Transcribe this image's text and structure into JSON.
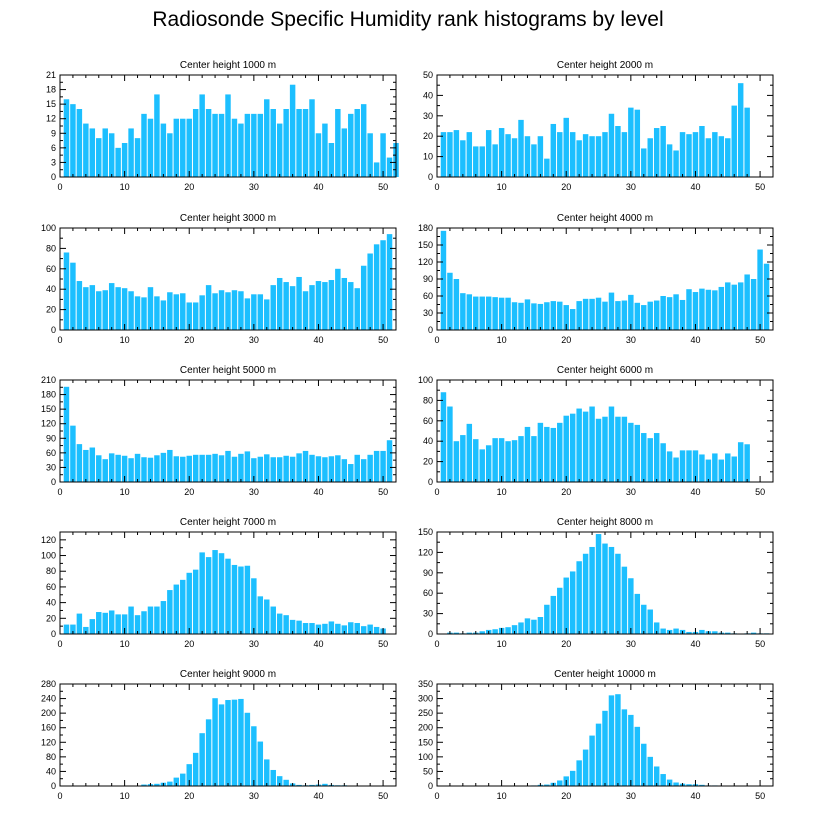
{
  "title": "Radiosonde Specific Humidity rank histograms by level",
  "bar_color": "#1cbfff",
  "chart_data": [
    {
      "type": "bar",
      "title": "Center height 1000 m",
      "xlim": [
        0,
        52
      ],
      "xticks": [
        0,
        10,
        20,
        30,
        40,
        50
      ],
      "ylim": [
        0,
        21
      ],
      "yticks": [
        0,
        3,
        6,
        9,
        12,
        15,
        18,
        21
      ],
      "values": [
        16,
        15,
        14,
        11,
        10,
        8,
        10,
        9,
        6,
        7,
        10,
        8,
        13,
        12,
        17,
        11,
        9,
        12,
        12,
        12,
        14,
        17,
        14,
        13,
        13,
        17,
        12,
        11,
        13,
        13,
        13,
        16,
        14,
        11,
        14,
        19,
        14,
        14,
        16,
        9,
        11,
        7,
        14,
        10,
        13,
        14,
        15,
        9,
        3,
        9,
        4,
        7
      ]
    },
    {
      "type": "bar",
      "title": "Center height 2000 m",
      "xlim": [
        0,
        52
      ],
      "xticks": [
        0,
        10,
        20,
        30,
        40,
        50
      ],
      "ylim": [
        0,
        50
      ],
      "yticks": [
        0,
        10,
        20,
        30,
        40,
        50
      ],
      "values": [
        22,
        22,
        23,
        18,
        22,
        15,
        15,
        23,
        16,
        24,
        21,
        19,
        28,
        20,
        16,
        20,
        9,
        26,
        22,
        29,
        22,
        18,
        21,
        20,
        20,
        22,
        31,
        25,
        22,
        34,
        33,
        14,
        19,
        24,
        25,
        16,
        13,
        22,
        21,
        22,
        25,
        19,
        22,
        20,
        19,
        35,
        46,
        34
      ]
    },
    {
      "type": "bar",
      "title": "Center height 3000 m",
      "xlim": [
        0,
        52
      ],
      "xticks": [
        0,
        10,
        20,
        30,
        40,
        50
      ],
      "ylim": [
        0,
        100
      ],
      "yticks": [
        0,
        20,
        40,
        60,
        80,
        100
      ],
      "values": [
        76,
        66,
        48,
        42,
        44,
        38,
        39,
        46,
        42,
        41,
        38,
        33,
        32,
        42,
        33,
        29,
        37,
        35,
        36,
        27,
        27,
        34,
        44,
        36,
        39,
        37,
        39,
        38,
        31,
        35,
        35,
        30,
        44,
        51,
        47,
        43,
        52,
        38,
        44,
        48,
        47,
        49,
        60,
        51,
        47,
        41,
        63,
        75,
        84,
        88,
        94
      ]
    },
    {
      "type": "bar",
      "title": "Center height 4000 m",
      "xlim": [
        0,
        52
      ],
      "xticks": [
        0,
        10,
        20,
        30,
        40,
        50
      ],
      "ylim": [
        0,
        180
      ],
      "yticks": [
        0,
        30,
        60,
        90,
        120,
        150,
        180
      ],
      "values": [
        175,
        101,
        90,
        65,
        63,
        59,
        59,
        59,
        58,
        57,
        57,
        49,
        48,
        54,
        47,
        46,
        49,
        51,
        50,
        44,
        37,
        51,
        55,
        55,
        57,
        50,
        66,
        51,
        52,
        62,
        48,
        44,
        50,
        52,
        60,
        58,
        63,
        53,
        72,
        67,
        73,
        71,
        70,
        76,
        84,
        80,
        84,
        98,
        90,
        142,
        117
      ]
    },
    {
      "type": "bar",
      "title": "Center height 5000 m",
      "xlim": [
        0,
        52
      ],
      "xticks": [
        0,
        10,
        20,
        30,
        40,
        50
      ],
      "ylim": [
        0,
        210
      ],
      "yticks": [
        0,
        30,
        60,
        90,
        120,
        150,
        180,
        210
      ],
      "values": [
        196,
        116,
        78,
        66,
        71,
        55,
        47,
        59,
        56,
        54,
        49,
        58,
        51,
        50,
        55,
        60,
        66,
        53,
        52,
        54,
        56,
        56,
        56,
        58,
        55,
        64,
        52,
        58,
        63,
        49,
        52,
        57,
        51,
        51,
        54,
        52,
        59,
        64,
        56,
        53,
        51,
        53,
        55,
        47,
        37,
        56,
        47,
        56,
        64,
        64,
        86
      ]
    },
    {
      "type": "bar",
      "title": "Center height 6000 m",
      "xlim": [
        0,
        52
      ],
      "xticks": [
        0,
        10,
        20,
        30,
        40,
        50
      ],
      "ylim": [
        0,
        100
      ],
      "yticks": [
        0,
        20,
        40,
        60,
        80,
        100
      ],
      "values": [
        88,
        74,
        40,
        46,
        57,
        42,
        32,
        36,
        43,
        43,
        40,
        41,
        45,
        54,
        45,
        58,
        54,
        53,
        58,
        65,
        67,
        72,
        69,
        74,
        62,
        64,
        74,
        64,
        64,
        58,
        56,
        48,
        43,
        48,
        38,
        30,
        24,
        31,
        31,
        31,
        27,
        22,
        28,
        22,
        28,
        25,
        39,
        37
      ]
    },
    {
      "type": "bar",
      "title": "Center height 7000 m",
      "xlim": [
        0,
        52
      ],
      "xticks": [
        0,
        10,
        20,
        30,
        40,
        50
      ],
      "ylim": [
        0,
        130
      ],
      "yticks": [
        0,
        20,
        40,
        60,
        80,
        100,
        120
      ],
      "values": [
        12,
        12,
        26,
        9,
        19,
        28,
        27,
        30,
        25,
        25,
        35,
        24,
        29,
        35,
        35,
        42,
        56,
        63,
        69,
        78,
        82,
        104,
        98,
        107,
        103,
        96,
        88,
        86,
        87,
        71,
        48,
        44,
        35,
        26,
        24,
        18,
        17,
        14,
        14,
        12,
        13,
        16,
        13,
        11,
        15,
        14,
        10,
        12,
        9,
        7
      ]
    },
    {
      "type": "bar",
      "title": "Center height 8000 m",
      "xlim": [
        0,
        52
      ],
      "xticks": [
        0,
        10,
        20,
        30,
        40,
        50
      ],
      "ylim": [
        0,
        150
      ],
      "yticks": [
        0,
        30,
        60,
        90,
        120,
        150
      ],
      "values": [
        0,
        2,
        2,
        1,
        2,
        2,
        4,
        6,
        7,
        9,
        10,
        13,
        17,
        23,
        21,
        25,
        43,
        56,
        68,
        83,
        92,
        107,
        118,
        128,
        147,
        133,
        128,
        118,
        99,
        82,
        59,
        43,
        36,
        17,
        8,
        6,
        8,
        6,
        3,
        3,
        6,
        4,
        4,
        2,
        2,
        1,
        0,
        1,
        2,
        1,
        1
      ]
    },
    {
      "type": "bar",
      "title": "Center height 9000 m",
      "xlim": [
        0,
        52
      ],
      "xticks": [
        0,
        10,
        20,
        30,
        40,
        50
      ],
      "ylim": [
        0,
        280
      ],
      "yticks": [
        0,
        40,
        80,
        120,
        160,
        200,
        240,
        280
      ],
      "values": [
        0,
        0,
        0,
        0,
        0,
        0,
        0,
        1,
        1,
        1,
        1,
        1,
        4,
        5,
        6,
        9,
        12,
        23,
        34,
        60,
        91,
        145,
        183,
        241,
        224,
        236,
        237,
        239,
        201,
        164,
        122,
        73,
        44,
        27,
        17,
        7,
        3,
        2,
        3,
        4,
        6,
        3,
        2,
        2,
        1,
        1,
        1,
        0,
        0,
        0,
        0
      ]
    },
    {
      "type": "bar",
      "title": "Center height 10000 m",
      "xlim": [
        0,
        52
      ],
      "xticks": [
        0,
        10,
        20,
        30,
        40,
        50
      ],
      "ylim": [
        0,
        350
      ],
      "yticks": [
        0,
        50,
        100,
        150,
        200,
        250,
        300,
        350
      ],
      "values": [
        0,
        0,
        0,
        0,
        0,
        0,
        0,
        0,
        0,
        0,
        0,
        0,
        0,
        1,
        2,
        4,
        5,
        11,
        19,
        33,
        52,
        88,
        125,
        173,
        214,
        258,
        311,
        315,
        263,
        244,
        203,
        145,
        100,
        67,
        41,
        22,
        12,
        8,
        6,
        6,
        4,
        2,
        2,
        1,
        1,
        1,
        0,
        0,
        0,
        0
      ]
    }
  ]
}
